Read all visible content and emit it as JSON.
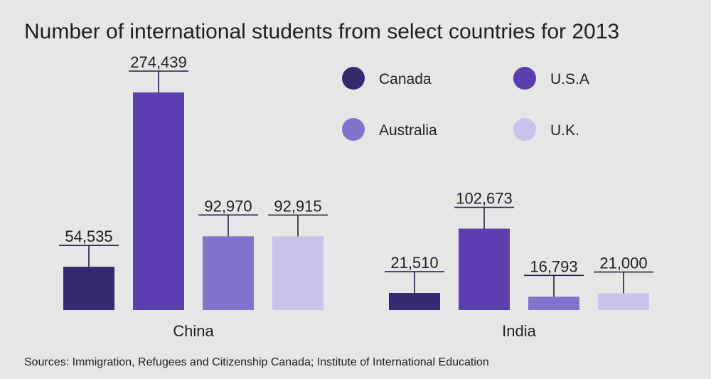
{
  "chart_data": {
    "type": "bar",
    "title": "Number of international students from select countries for 2013",
    "source": "Sources: Immigration, Refugees and Citizenship Canada; Institute of International Education",
    "categories": [
      "China",
      "India"
    ],
    "series": [
      {
        "name": "Canada",
        "color": "#352a72",
        "values": [
          54535,
          21510
        ],
        "labels": [
          "54,535",
          "21,510"
        ]
      },
      {
        "name": "U.S.A",
        "color": "#5b3fb0",
        "values": [
          274439,
          102673
        ],
        "labels": [
          "274,439",
          "102,673"
        ]
      },
      {
        "name": "Australia",
        "color": "#8272cc",
        "values": [
          92970,
          16793
        ],
        "labels": [
          "92,970",
          "16,793"
        ]
      },
      {
        "name": "U.K.",
        "color": "#c9c2ea",
        "values": [
          92915,
          21000
        ],
        "labels": [
          "92,915",
          "21,000"
        ]
      }
    ],
    "ylim": [
      0,
      274439
    ],
    "grid": false,
    "legend_position": "top-right"
  }
}
